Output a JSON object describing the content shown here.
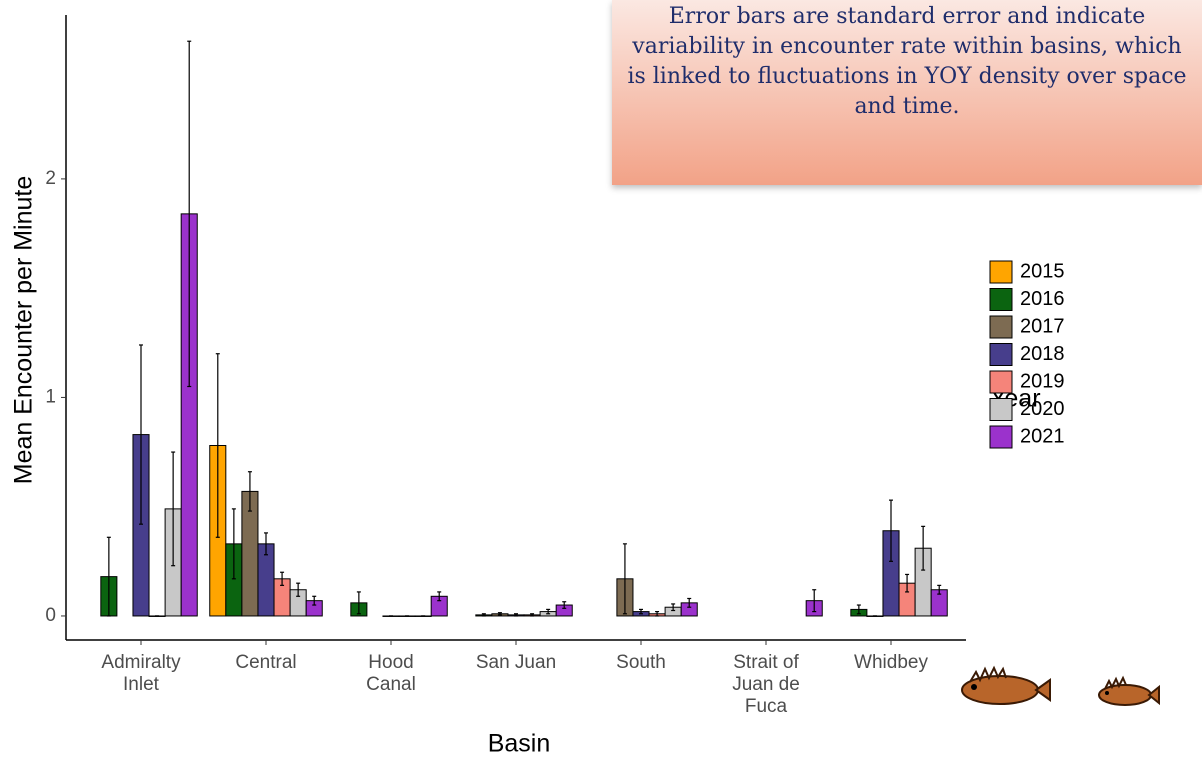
{
  "chart_data": {
    "type": "bar",
    "annotation": "Error bars are standard error and indicate variability in encounter rate within basins, which is linked to fluctuations in YOY density over space and time.",
    "x_label": "Basin",
    "y_label": "Mean Encounter per Minute",
    "legend_title": "Year",
    "categories": [
      "Admiralty Inlet",
      "Central",
      "Hood Canal",
      "San Juan",
      "South",
      "Strait of Juan de Fuca",
      "Whidbey"
    ],
    "series": [
      {
        "name": "2015",
        "color": "#ffa500",
        "values": [
          null,
          0.78,
          null,
          null,
          null,
          null,
          null
        ],
        "errors": [
          null,
          0.42,
          null,
          null,
          null,
          null,
          null
        ]
      },
      {
        "name": "2016",
        "color": "#0b6410",
        "values": [
          0.18,
          0.33,
          0.06,
          0.005,
          null,
          null,
          0.03
        ],
        "errors": [
          0.18,
          0.16,
          0.05,
          0.005,
          null,
          null,
          0.02
        ]
      },
      {
        "name": "2017",
        "color": "#7d6b52",
        "values": [
          null,
          0.57,
          null,
          0.01,
          0.17,
          null,
          0.0
        ],
        "errors": [
          null,
          0.09,
          null,
          0.005,
          0.16,
          null,
          0.0
        ]
      },
      {
        "name": "2018",
        "color": "#473e8c",
        "values": [
          0.83,
          0.33,
          0.0,
          0.005,
          0.02,
          null,
          0.39
        ],
        "errors": [
          0.41,
          0.05,
          0.0,
          0.005,
          0.01,
          null,
          0.14
        ]
      },
      {
        "name": "2019",
        "color": "#f5847a",
        "values": [
          0.0,
          0.17,
          0.0,
          0.005,
          0.01,
          null,
          0.15
        ],
        "errors": [
          0.0,
          0.03,
          0.0,
          0.005,
          0.01,
          null,
          0.04
        ]
      },
      {
        "name": "2020",
        "color": "#c8c8c8",
        "values": [
          0.49,
          0.12,
          0.0,
          0.02,
          0.04,
          null,
          0.31
        ],
        "errors": [
          0.26,
          0.03,
          0.0,
          0.01,
          0.015,
          null,
          0.1
        ]
      },
      {
        "name": "2021",
        "color": "#9b32cc",
        "values": [
          1.84,
          0.07,
          0.09,
          0.05,
          0.06,
          0.07,
          0.12
        ],
        "errors": [
          0.79,
          0.02,
          0.02,
          0.015,
          0.02,
          0.05,
          0.02
        ]
      }
    ],
    "ylim": [
      -0.11,
      2.75
    ],
    "yticks": [
      0,
      1,
      2
    ],
    "grid": false,
    "legend": "right"
  }
}
